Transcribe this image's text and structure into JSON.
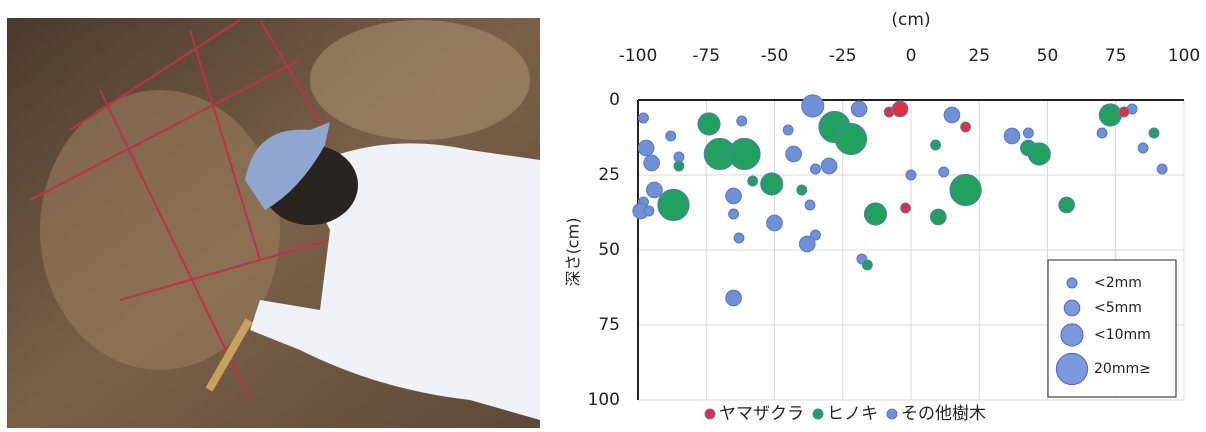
{
  "chart_data": {
    "type": "bubble",
    "xlabel": "(cm)",
    "ylabel": "深さ(cm)",
    "xlim": [
      -100,
      100
    ],
    "xticks": [
      -100,
      -75,
      -50,
      -25,
      0,
      25,
      50,
      75,
      100
    ],
    "ylim": [
      0,
      100
    ],
    "yticks": [
      0,
      25,
      50,
      75,
      100
    ],
    "y_inverted": true,
    "x_axis_position": "top",
    "grid": true,
    "size_legend": [
      {
        "value": 2,
        "label": "<2mm"
      },
      {
        "value": 5,
        "label": "<5mm"
      },
      {
        "value": 10,
        "label": "<10mm"
      },
      {
        "value": 20,
        "label": "20mm≥"
      }
    ],
    "series": [
      {
        "name": "その他樹木",
        "color": "#6f8fd6",
        "x": [
          -98,
          -97,
          -95,
          -94,
          -98,
          -99,
          -96,
          -88,
          -85,
          -62,
          -65,
          -65,
          -63,
          -65,
          -45,
          -43,
          -50,
          -36,
          -35,
          -37,
          -35,
          -38,
          -30,
          -19,
          -18,
          0,
          12,
          15,
          37,
          43,
          43,
          70,
          81,
          85,
          92
        ],
        "values": [
          6,
          16,
          21,
          30,
          34,
          37,
          37,
          12,
          19,
          7,
          32,
          38,
          46,
          66,
          10,
          18,
          41,
          2,
          23,
          35,
          45,
          48,
          22,
          3,
          53,
          25,
          24,
          5,
          12,
          11,
          16,
          11,
          3,
          16,
          23
        ],
        "sizes": [
          2,
          5,
          5,
          5,
          2,
          5,
          2,
          2,
          2,
          2,
          5,
          2,
          2,
          5,
          2,
          5,
          5,
          10,
          2,
          2,
          2,
          5,
          5,
          5,
          2,
          2,
          2,
          5,
          5,
          2,
          2,
          2,
          2,
          2,
          2
        ]
      },
      {
        "name": "ヒノキ",
        "color": "#22a060",
        "x": [
          -74,
          -85,
          -87,
          -70,
          -61,
          -58,
          -51,
          -40,
          -28,
          -22,
          -13,
          -16,
          9,
          10,
          20,
          43,
          47,
          57,
          73,
          89
        ],
        "values": [
          8,
          22,
          35,
          18,
          18,
          27,
          28,
          30,
          9,
          13,
          38,
          55,
          15,
          39,
          30,
          16,
          18,
          35,
          5,
          11
        ],
        "sizes": [
          10,
          2,
          20,
          20,
          20,
          2,
          10,
          2,
          20,
          20,
          10,
          2,
          2,
          5,
          20,
          5,
          10,
          5,
          10,
          2
        ]
      },
      {
        "name": "ヤマザクラ",
        "color": "#e03040",
        "x": [
          -8,
          -4,
          -2,
          20,
          78
        ],
        "values": [
          4,
          3,
          36,
          9,
          4
        ],
        "sizes": [
          2,
          5,
          2,
          2,
          2
        ]
      }
    ],
    "legend_order": [
      2,
      1,
      0
    ]
  }
}
